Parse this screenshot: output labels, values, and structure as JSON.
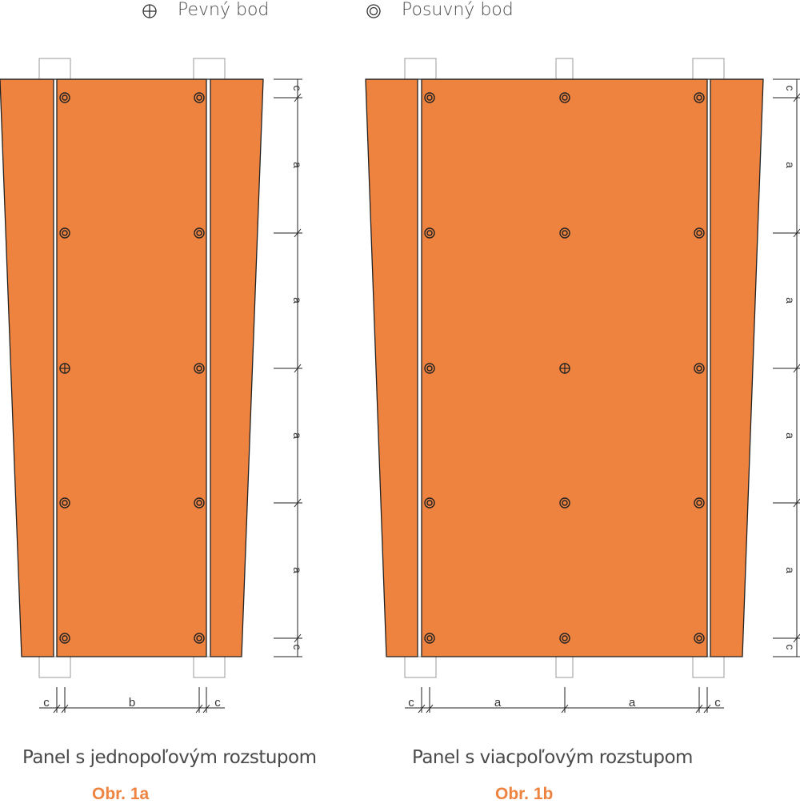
{
  "legend": {
    "fixed_point": {
      "symbol": "fixed-point-symbol",
      "label": "Pevný bod"
    },
    "sliding_point": {
      "symbol": "sliding-point-symbol",
      "label": "Posuvný bod"
    }
  },
  "colors": {
    "panel": "#EE8340",
    "label_accent": "#EE8340",
    "line": "#222222",
    "text": "#4a4a4a"
  },
  "figures": [
    {
      "id": "1a",
      "caption": "Panel s jednopoľovým rozstupom",
      "label": "Obr. 1a",
      "vertical_dimensions": [
        "c",
        "a",
        "a",
        "a",
        "a",
        "c"
      ],
      "horizontal_dimensions": [
        "c",
        "b",
        "c"
      ],
      "fixed_point": "left column, middle row"
    },
    {
      "id": "1b",
      "caption": "Panel s viacpoľovým rozstupom",
      "label": "Obr. 1b",
      "vertical_dimensions": [
        "c",
        "a",
        "a",
        "a",
        "a",
        "c"
      ],
      "horizontal_dimensions": [
        "c",
        "a",
        "a",
        "c"
      ],
      "fixed_point": "center column, middle row"
    }
  ]
}
